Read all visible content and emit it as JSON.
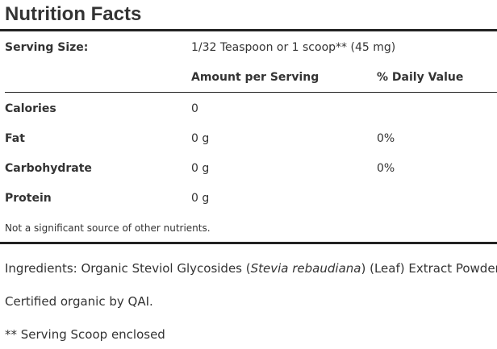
{
  "title": "Nutrition Facts",
  "serving": {
    "label": "Serving Size:",
    "value": "1/32 Teaspoon or 1 scoop** (45 mg)"
  },
  "columns": {
    "amount": "Amount per Serving",
    "daily": "% Daily Value"
  },
  "nutrients": [
    {
      "name": "Calories",
      "amount": "0",
      "daily": ""
    },
    {
      "name": "Fat",
      "amount": "0 g",
      "daily": "0%"
    },
    {
      "name": "Carbohydrate",
      "amount": "0 g",
      "daily": "0%"
    },
    {
      "name": "Protein",
      "amount": "0 g",
      "daily": ""
    }
  ],
  "footnote": "Not a significant source of other nutrients.",
  "ingredients": {
    "prefix": "Ingredients: Organic Steviol Glycosides (",
    "italic": "Stevia rebaudiana",
    "suffix": ") (Leaf) Extract Powder."
  },
  "certified": "Certified organic by QAI.",
  "scoop_note": "** Serving Scoop enclosed"
}
